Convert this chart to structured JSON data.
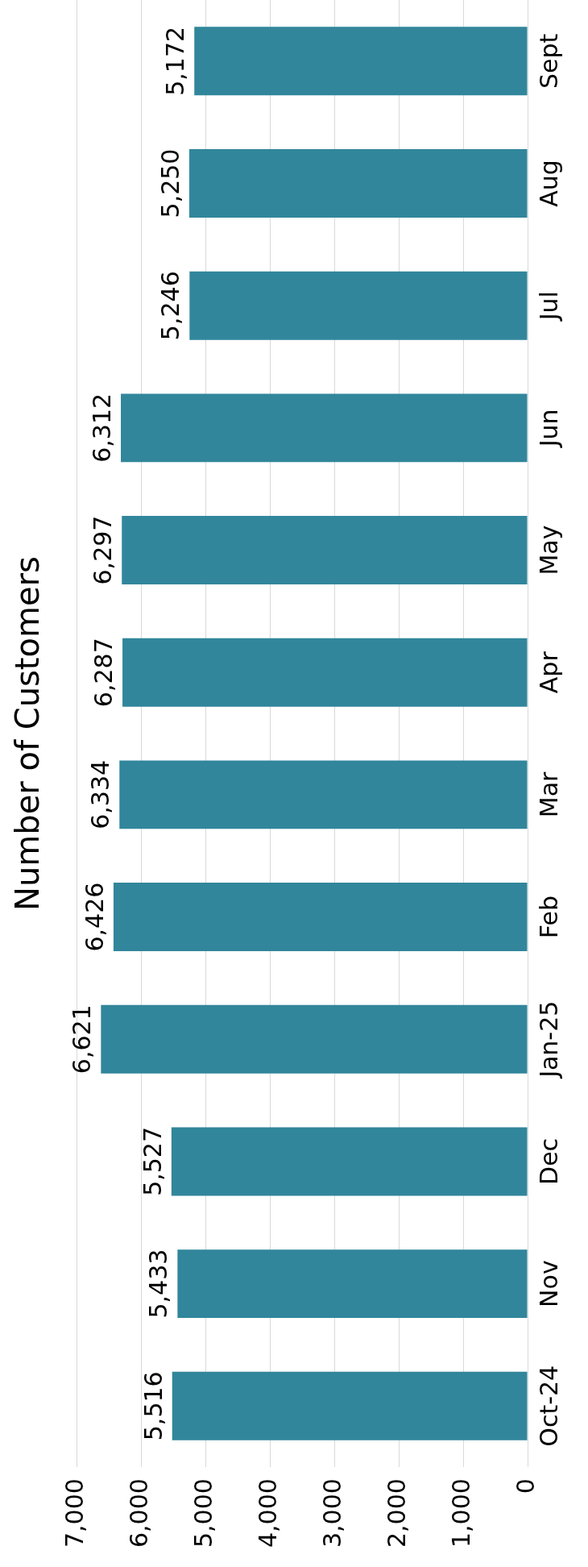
{
  "chart_data": {
    "type": "bar",
    "title": "Number of Customers",
    "orientation": "horizontal",
    "categories": [
      "Sept",
      "Aug",
      "Jul",
      "Jun",
      "May",
      "Apr",
      "Mar",
      "Feb",
      "Jan-25",
      "Dec",
      "Nov",
      "Oct-24"
    ],
    "values": [
      5172,
      5250,
      5246,
      6312,
      6297,
      6287,
      6334,
      6426,
      6621,
      5527,
      5433,
      5516
    ],
    "color": "#31869b",
    "xlim": [
      7000,
      0
    ],
    "xticks": [
      {
        "value": 0,
        "label": "0"
      },
      {
        "value": 1000,
        "label": "1,000"
      },
      {
        "value": 2000,
        "label": "2,000"
      },
      {
        "value": 3000,
        "label": "3,000"
      },
      {
        "value": 4000,
        "label": "4,000"
      },
      {
        "value": 5000,
        "label": "5,000"
      },
      {
        "value": 6000,
        "label": "6,000"
      },
      {
        "value": 7000,
        "label": "7,000"
      }
    ],
    "grid": "x",
    "value_labels": [
      "5,172",
      "5,250",
      "5,246",
      "6,312",
      "6,297",
      "6,287",
      "6,334",
      "6,426",
      "6,621",
      "5,527",
      "5,433",
      "5,516"
    ]
  }
}
